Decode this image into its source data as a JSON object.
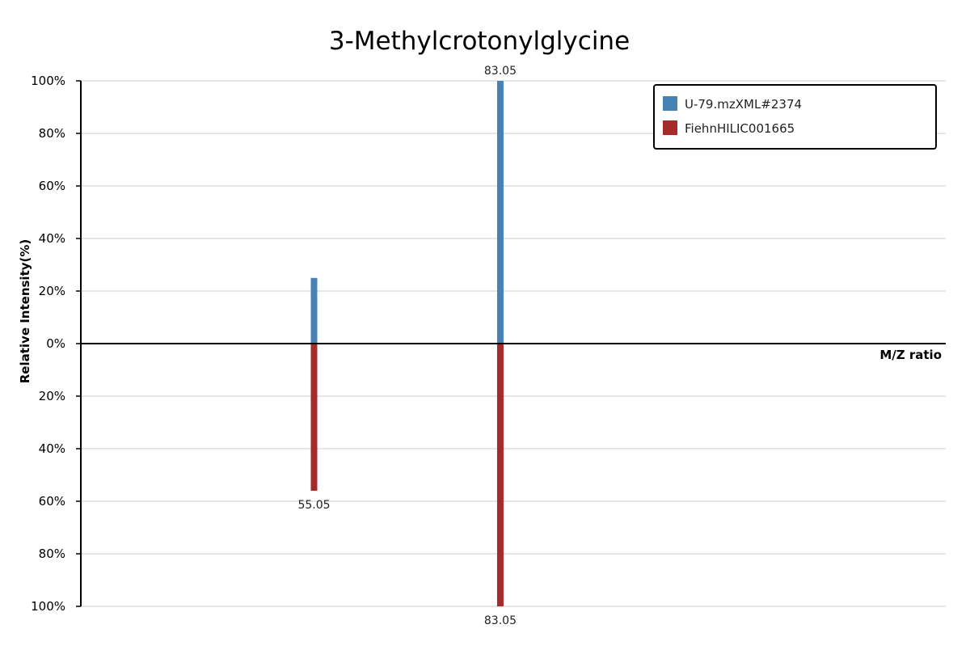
{
  "chart_data": {
    "type": "bar",
    "subtype": "mirrored-mass-spectrum",
    "title": "3-Methylcrotonylglycine",
    "xlabel": "M/Z ratio",
    "ylabel": "Relative Intensity(%)",
    "ylim": [
      -100,
      100
    ],
    "grid": true,
    "legend_position": "top-right",
    "y_ticks": [
      "100%",
      "80%",
      "60%",
      "40%",
      "20%",
      "0%",
      "20%",
      "40%",
      "60%",
      "80%",
      "100%"
    ],
    "series": [
      {
        "name": "U-79.mzXML#2374",
        "color": "#4682b4",
        "direction": "up",
        "peaks": [
          {
            "mz": 55.05,
            "intensity": 25,
            "label": ""
          },
          {
            "mz": 83.05,
            "intensity": 100,
            "label": "83.05"
          }
        ]
      },
      {
        "name": "FiehnHILIC001665",
        "color": "#a52a2a",
        "direction": "down",
        "peaks": [
          {
            "mz": 55.05,
            "intensity": 56,
            "label": "55.05"
          },
          {
            "mz": 83.05,
            "intensity": 100,
            "label": "83.05"
          }
        ]
      }
    ]
  }
}
